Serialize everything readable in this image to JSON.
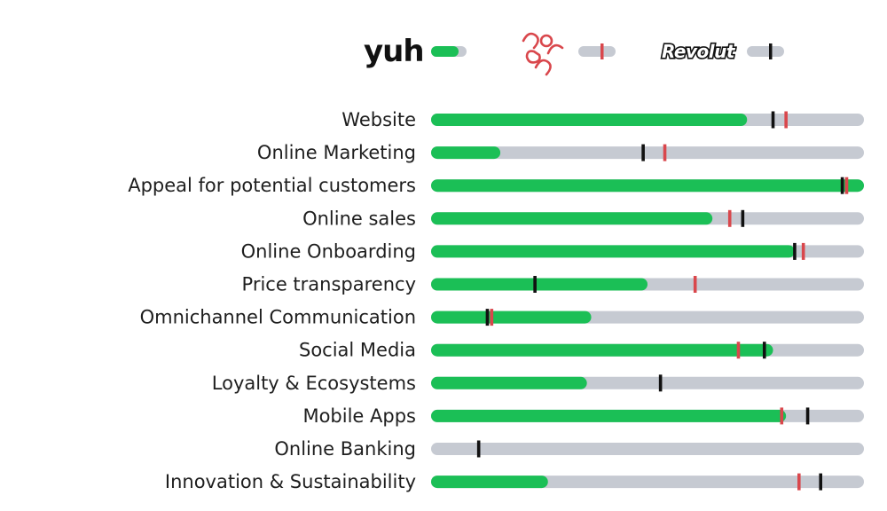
{
  "legend": {
    "yuh": {
      "text": "yuh",
      "color": "#1bbf56"
    },
    "neon": {
      "text": "neon",
      "color": "#d9474c"
    },
    "revolut": {
      "text": "Revolut",
      "color": "#111111"
    }
  },
  "colors": {
    "track": "#c6cad2",
    "yuh_bar": "#1bbf56",
    "neon_marker": "#d9474c",
    "revolut_marker": "#111111"
  },
  "chart_data": {
    "type": "bar",
    "orientation": "horizontal",
    "xlim": [
      0,
      100
    ],
    "legend_position": "top",
    "categories": [
      "Website",
      "Online Marketing",
      "Appeal for potential customers",
      "Online sales",
      "Online Onboarding",
      "Price transparency",
      "Omnichannel Communication",
      "Social Media",
      "Loyalty & Ecosystems",
      "Mobile Apps",
      "Online Banking",
      "Innovation & Sustainability"
    ],
    "series": [
      {
        "name": "yuh",
        "mark": "bar",
        "values": [
          73,
          16,
          100,
          65,
          84,
          50,
          37,
          79,
          36,
          82,
          0,
          27
        ]
      },
      {
        "name": "neon",
        "mark": "marker",
        "values": [
          82,
          54,
          96,
          69,
          86,
          61,
          14,
          71,
          null,
          81,
          null,
          85
        ]
      },
      {
        "name": "Revolut",
        "mark": "marker",
        "values": [
          79,
          49,
          95,
          72,
          84,
          24,
          13,
          77,
          53,
          87,
          11,
          90
        ]
      }
    ]
  }
}
